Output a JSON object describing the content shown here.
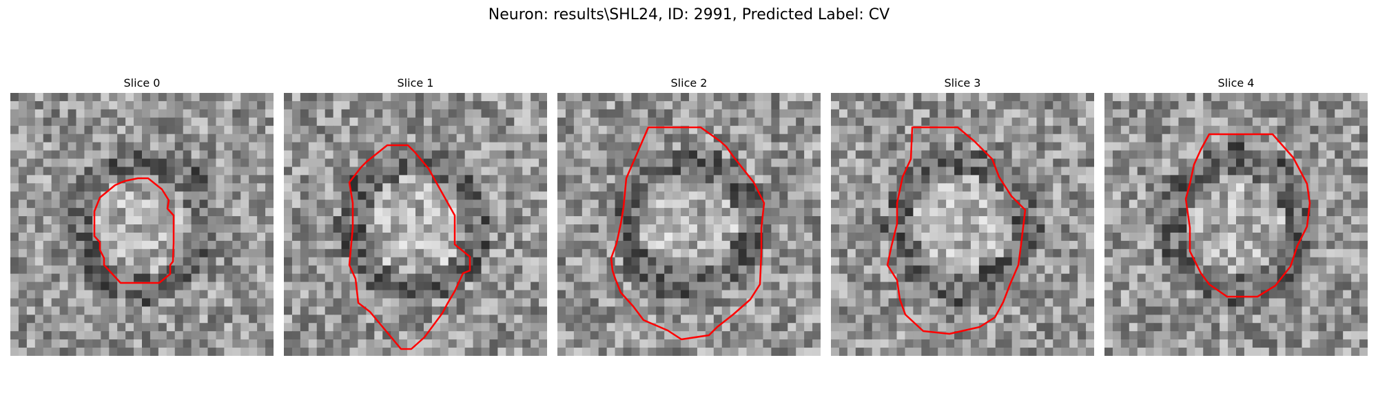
{
  "figure": {
    "title": "Neuron: results\\SHL24, ID: 2991, Predicted Label: CV"
  },
  "slices": [
    {
      "label": "Slice 0"
    },
    {
      "label": "Slice 1"
    },
    {
      "label": "Slice 2"
    },
    {
      "label": "Slice 3"
    },
    {
      "label": "Slice 4"
    }
  ],
  "colors": {
    "contour": "#ff0000",
    "colormap": "gray",
    "background": "#ffffff"
  }
}
